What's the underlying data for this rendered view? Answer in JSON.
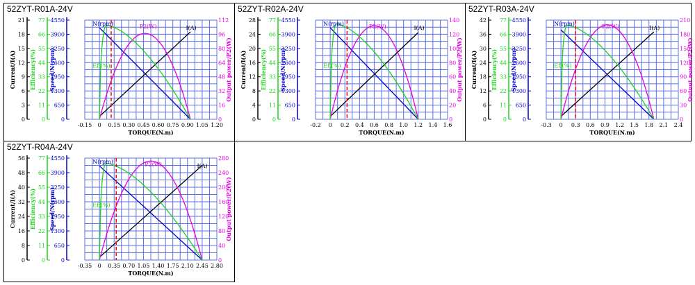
{
  "colors": {
    "grid": "#5b6fe6",
    "current": "#000000",
    "speed": "#0000cc",
    "efficiency": "#1ed21e",
    "power": "#e000e0",
    "marker": "#ff0000"
  },
  "axis_titles": {
    "current": "Current/I(A)",
    "efficiency": "Efficiency(%)",
    "speed": "Speed/N(rpm)",
    "power": "Output power/P2(W)",
    "torque": "TORQUE(N.m)"
  },
  "curve_labels": {
    "speed": "N(rpm)",
    "power": "P2(W)",
    "current": "I(A)",
    "efficiency": "Eff(%)"
  },
  "chart_data": [
    {
      "title": "52ZYT-R01A-24V",
      "type": "line",
      "xlabel": "TORQUE(N.m)",
      "x_ticks": [
        "-0.15",
        "0",
        "0.15",
        "0.30",
        "0.45",
        "0.60",
        "0.75",
        "0.90",
        "1.05",
        "1.20"
      ],
      "x_range": [
        -0.15,
        1.2
      ],
      "current_ticks": [
        "0",
        "3",
        "6",
        "9",
        "12",
        "15",
        "18",
        "21"
      ],
      "efficiency_ticks": [
        "0",
        "11",
        "22",
        "33",
        "44",
        "55",
        "66",
        "77"
      ],
      "speed_ticks": [
        "0",
        "650",
        "1300",
        "1950",
        "2600",
        "3250",
        "3900",
        "4550"
      ],
      "power_ticks": [
        "0",
        "16",
        "32",
        "48",
        "64",
        "80",
        "96",
        "112"
      ],
      "rated_torque": 0.12,
      "stall_torque": 0.93,
      "no_load_speed": 4200,
      "stall_current": 18.5,
      "max_power": 97,
      "max_eff": 73,
      "series": [
        {
          "name": "N(rpm)",
          "x": [
            0,
            0.93
          ],
          "y": [
            4200,
            0
          ]
        },
        {
          "name": "I(A)",
          "x": [
            0,
            0.93
          ],
          "y": [
            0.6,
            18.5
          ]
        },
        {
          "name": "P2(W)",
          "peak_x": 0.465,
          "peak_y": 97
        },
        {
          "name": "Eff(%)",
          "peak_x": 0.07,
          "peak_y": 73
        }
      ]
    },
    {
      "title": "52ZYT-R02A-24V",
      "type": "line",
      "xlabel": "TORQUE(N.m)",
      "x_ticks": [
        "-0.2",
        "0",
        "0.2",
        "0.4",
        "0.6",
        "0.8",
        "1.0",
        "1.2",
        "1.4",
        "1.6"
      ],
      "x_range": [
        -0.2,
        1.6
      ],
      "current_ticks": [
        "0",
        "4",
        "8",
        "12",
        "16",
        "20",
        "24",
        "28"
      ],
      "efficiency_ticks": [
        "0",
        "11",
        "22",
        "33",
        "44",
        "55",
        "66",
        "77"
      ],
      "speed_ticks": [
        "0",
        "650",
        "1300",
        "1950",
        "2600",
        "3250",
        "3900",
        "4550"
      ],
      "power_ticks": [
        "0",
        "20",
        "40",
        "60",
        "80",
        "100",
        "120",
        "140"
      ],
      "rated_torque": 0.23,
      "stall_torque": 1.2,
      "no_load_speed": 4200,
      "stall_current": 24.5,
      "max_power": 132,
      "max_eff": 74,
      "series": [
        {
          "name": "N(rpm)",
          "x": [
            0,
            1.2
          ],
          "y": [
            4200,
            0
          ]
        },
        {
          "name": "I(A)",
          "x": [
            0,
            1.2
          ],
          "y": [
            0.8,
            24.5
          ]
        },
        {
          "name": "P2(W)",
          "peak_x": 0.6,
          "peak_y": 132
        },
        {
          "name": "Eff(%)",
          "peak_x": 0.08,
          "peak_y": 74
        }
      ]
    },
    {
      "title": "52ZYT-R03A-24V",
      "type": "line",
      "xlabel": "TORQUE(N.m)",
      "x_ticks": [
        "-0.3",
        "0",
        "0.3",
        "0.6",
        "0.9",
        "1.2",
        "1.5",
        "1.8",
        "2.1",
        "2.4"
      ],
      "x_range": [
        -0.3,
        2.4
      ],
      "current_ticks": [
        "0",
        "6",
        "12",
        "18",
        "24",
        "30",
        "36",
        "42"
      ],
      "efficiency_ticks": [
        "0",
        "11",
        "22",
        "33",
        "44",
        "55",
        "66",
        "77"
      ],
      "speed_ticks": [
        "0",
        "650",
        "1300",
        "1950",
        "2600",
        "3250",
        "3900",
        "4550"
      ],
      "power_ticks": [
        "0",
        "30",
        "60",
        "90",
        "120",
        "150",
        "180",
        "210"
      ],
      "rated_torque": 0.3,
      "stall_torque": 1.9,
      "no_load_speed": 4100,
      "stall_current": 37,
      "max_power": 200,
      "max_eff": 73,
      "series": [
        {
          "name": "N(rpm)",
          "x": [
            0,
            1.9
          ],
          "y": [
            4100,
            0
          ]
        },
        {
          "name": "I(A)",
          "x": [
            0,
            1.9
          ],
          "y": [
            1.2,
            37
          ]
        },
        {
          "name": "P2(W)",
          "peak_x": 0.95,
          "peak_y": 200
        },
        {
          "name": "Eff(%)",
          "peak_x": 0.12,
          "peak_y": 73
        }
      ]
    },
    {
      "title": "52ZYT-R04A-24V",
      "type": "line",
      "xlabel": "TORQUE(N.m)",
      "x_ticks": [
        "-0.35",
        "0",
        "0.35",
        "0.70",
        "1.05",
        "1.40",
        "1.75",
        "2.10",
        "2.45",
        "2.80"
      ],
      "x_range": [
        -0.35,
        2.8
      ],
      "current_ticks": [
        "0",
        "8",
        "16",
        "24",
        "32",
        "40",
        "48",
        "56"
      ],
      "efficiency_ticks": [
        "0",
        "11",
        "22",
        "33",
        "44",
        "55",
        "66",
        "77"
      ],
      "speed_ticks": [
        "0",
        "650",
        "1300",
        "1950",
        "2600",
        "3250",
        "3900",
        "4550"
      ],
      "power_ticks": [
        "0",
        "40",
        "80",
        "120",
        "160",
        "200",
        "240",
        "280"
      ],
      "rated_torque": 0.4,
      "stall_torque": 2.45,
      "no_load_speed": 4200,
      "stall_current": 52,
      "max_power": 272,
      "max_eff": 73,
      "series": [
        {
          "name": "N(rpm)",
          "x": [
            0,
            2.45
          ],
          "y": [
            4200,
            0
          ]
        },
        {
          "name": "I(A)",
          "x": [
            0,
            2.45
          ],
          "y": [
            1.5,
            52
          ]
        },
        {
          "name": "P2(W)",
          "peak_x": 1.225,
          "peak_y": 272
        },
        {
          "name": "Eff(%)",
          "peak_x": 0.15,
          "peak_y": 73
        }
      ]
    }
  ]
}
